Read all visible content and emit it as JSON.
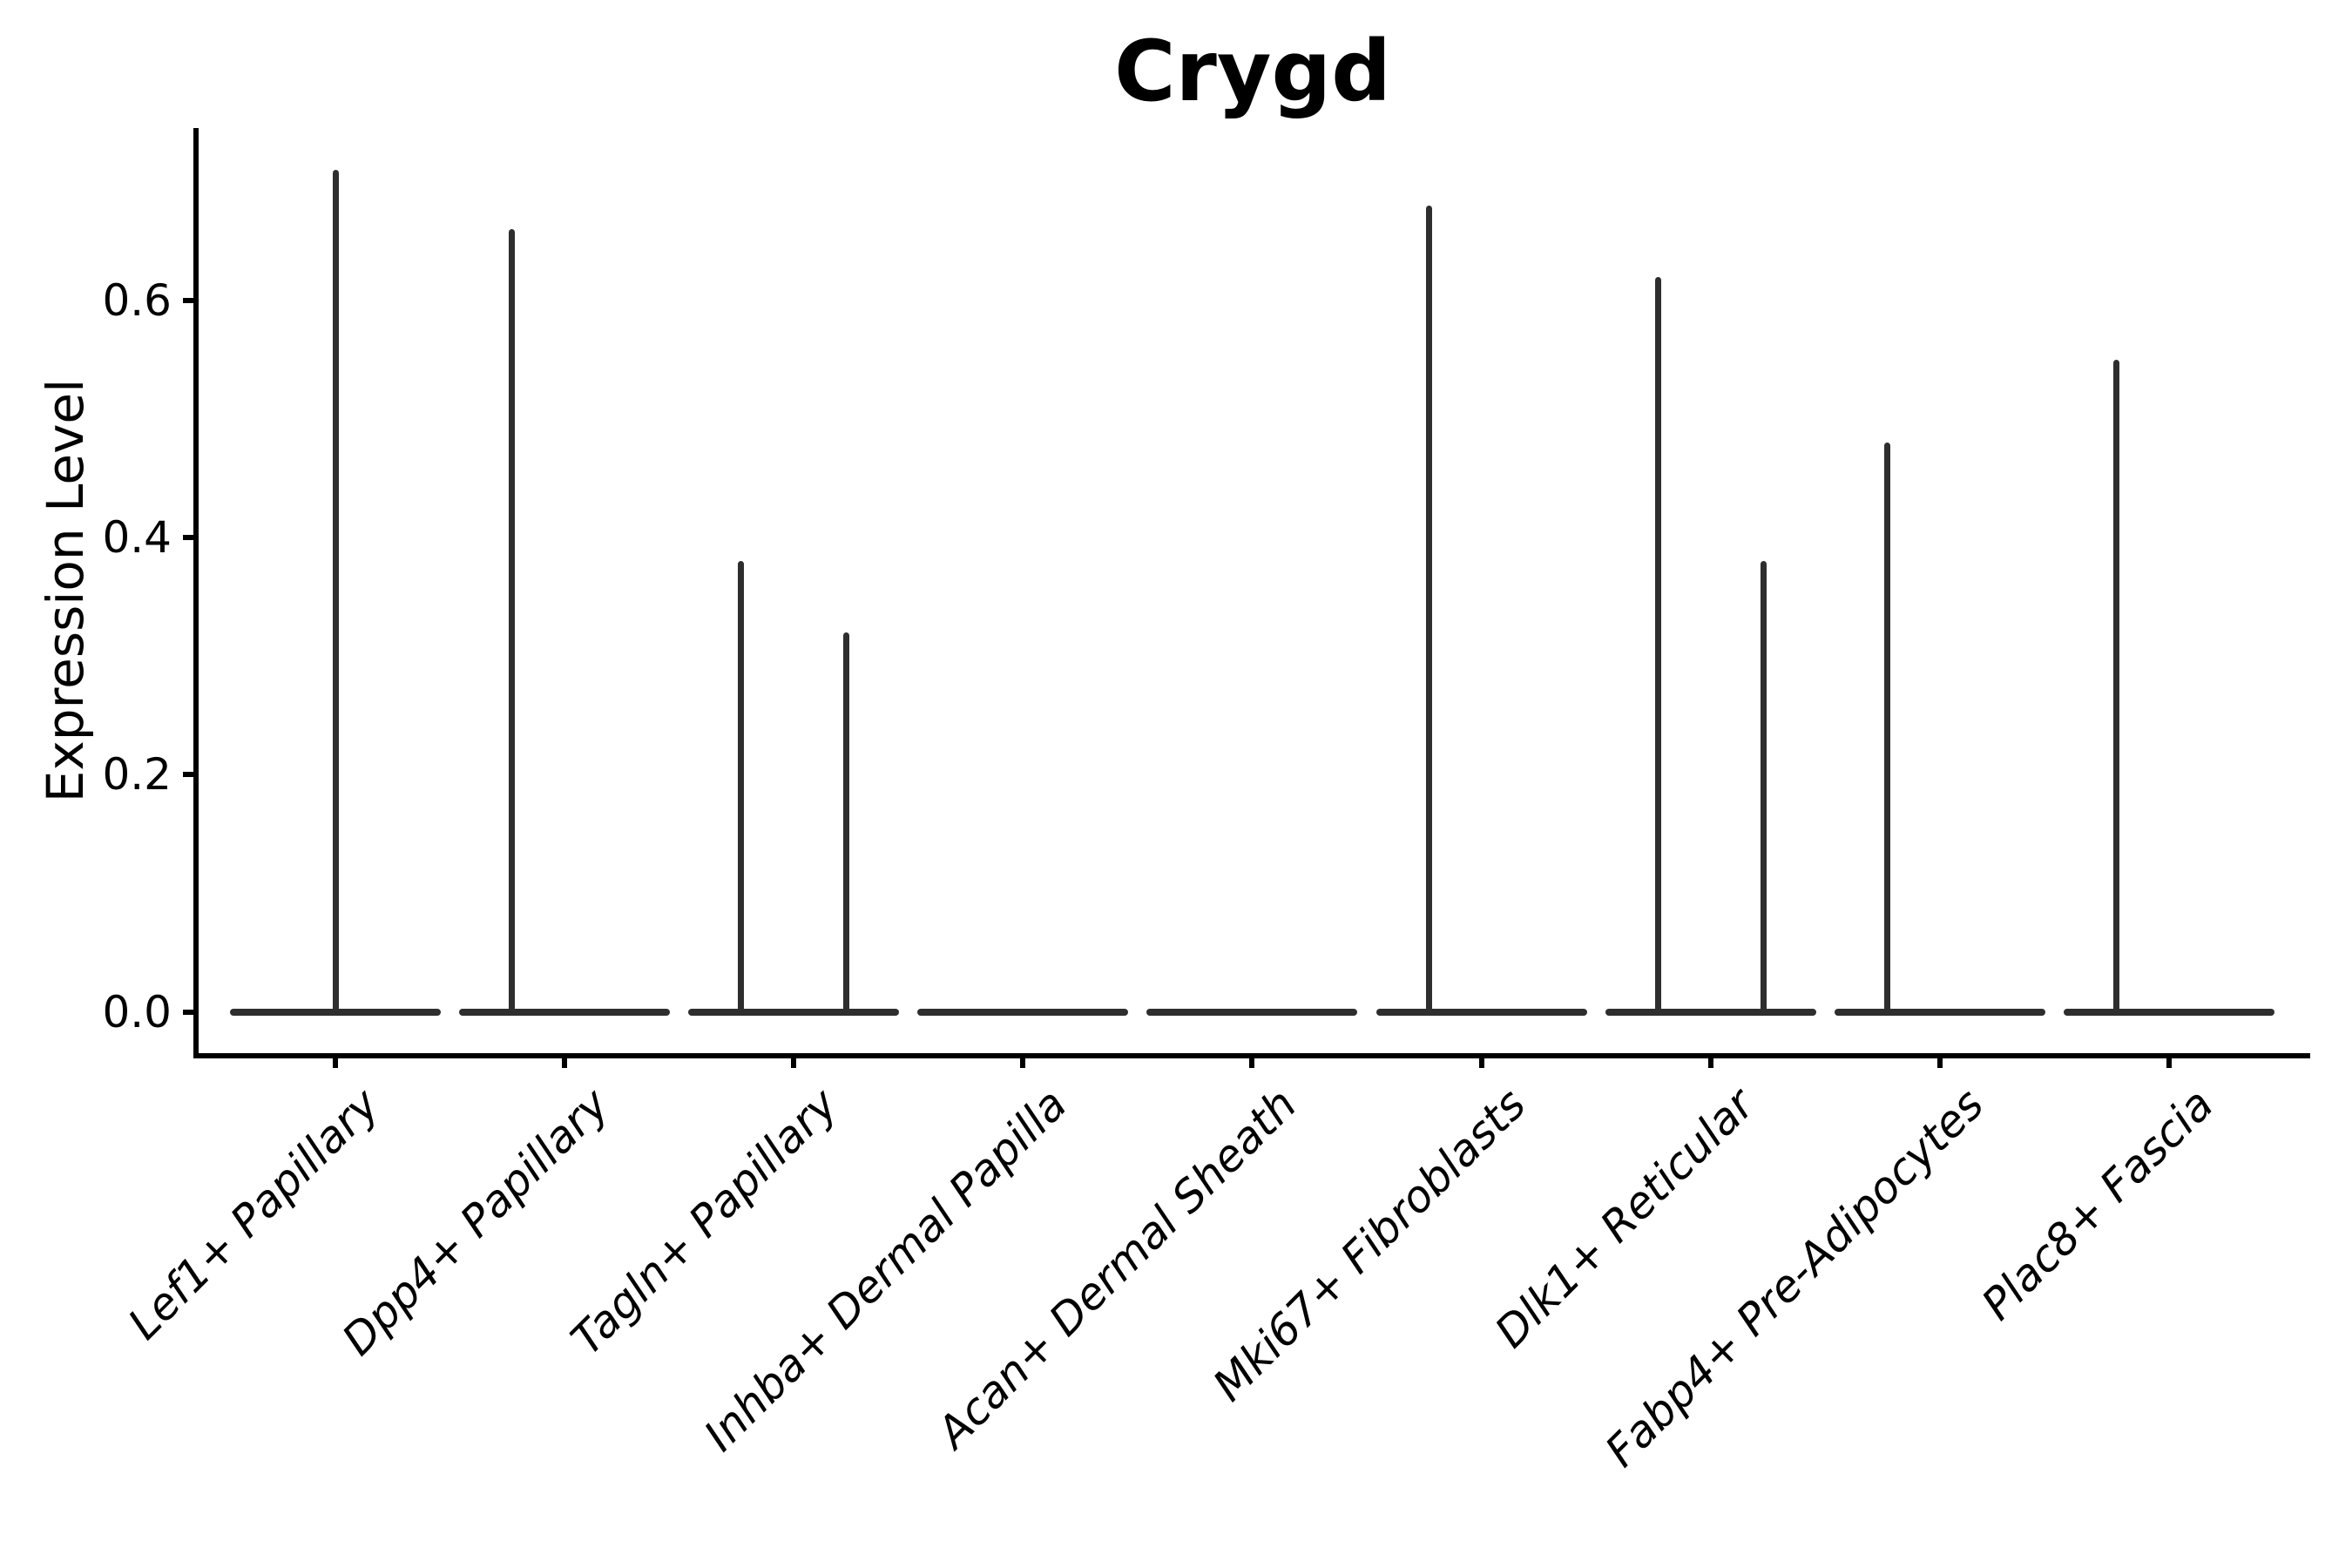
{
  "title": "Crygd",
  "y_axis": {
    "label": "Expression Level",
    "tick_labels": [
      "0.0",
      "0.2",
      "0.4",
      "0.6"
    ],
    "tick_values": [
      0.0,
      0.2,
      0.4,
      0.6
    ]
  },
  "x_axis": {
    "categories": [
      "Lef1+ Papillary",
      "Dpp4+ Papillary",
      "Tagln+ Papillary",
      "Inhba+ Dermal Papilla",
      "Acan+ Dermal Sheath",
      "Mki67+ Fibroblasts",
      "Dlk1+ Reticular",
      "Fabp4+ Pre-Adipocytes",
      "Plac8+ Fascia"
    ]
  },
  "colors": {
    "violin": "#2e2e2e",
    "axis": "#000000",
    "background": "#ffffff"
  },
  "chart_data": {
    "type": "violin",
    "title": "Crygd",
    "xlabel": "",
    "ylabel": "Expression Level",
    "ylim": [
      0,
      0.745
    ],
    "grid": false,
    "legend": "none",
    "note": "Single-gene expression violin plot; nearly all cells at 0 (flat base at y=0) with thin density spikes up to the max expressing cell per group",
    "categories": [
      "Lef1+ Papillary",
      "Dpp4+ Papillary",
      "Tagln+ Papillary",
      "Inhba+ Dermal Papilla",
      "Acan+ Dermal Sheath",
      "Mki67+ Fibroblasts",
      "Dlk1+ Reticular",
      "Fabp4+ Pre-Adipocytes",
      "Plac8+ Fascia"
    ],
    "violins": [
      {
        "category": "Lef1+ Papillary",
        "base_at_zero": true,
        "spikes": [
          {
            "position": "center",
            "peak": 0.71
          }
        ]
      },
      {
        "category": "Dpp4+ Papillary",
        "base_at_zero": true,
        "spikes": [
          {
            "position": "left",
            "peak": 0.66
          }
        ]
      },
      {
        "category": "Tagln+ Papillary",
        "base_at_zero": true,
        "spikes": [
          {
            "position": "left",
            "peak": 0.38
          },
          {
            "position": "right",
            "peak": 0.32
          }
        ]
      },
      {
        "category": "Inhba+ Dermal Papilla",
        "base_at_zero": true,
        "spikes": []
      },
      {
        "category": "Acan+ Dermal Sheath",
        "base_at_zero": true,
        "spikes": []
      },
      {
        "category": "Mki67+ Fibroblasts",
        "base_at_zero": true,
        "spikes": [
          {
            "position": "left",
            "peak": 0.68
          }
        ]
      },
      {
        "category": "Dlk1+ Reticular",
        "base_at_zero": true,
        "spikes": [
          {
            "position": "left",
            "peak": 0.62
          },
          {
            "position": "right",
            "peak": 0.38
          }
        ]
      },
      {
        "category": "Fabp4+ Pre-Adipocytes",
        "base_at_zero": true,
        "spikes": [
          {
            "position": "left",
            "peak": 0.48
          }
        ]
      },
      {
        "category": "Plac8+ Fascia",
        "base_at_zero": true,
        "spikes": [
          {
            "position": "left",
            "peak": 0.55
          }
        ]
      }
    ]
  }
}
